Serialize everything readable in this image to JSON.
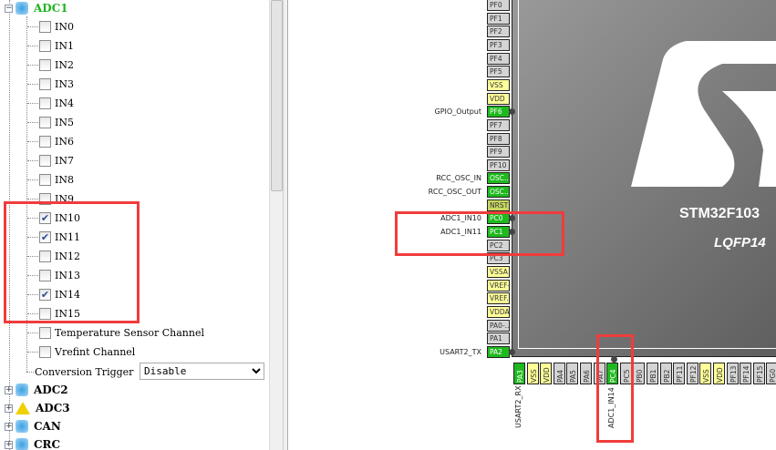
{
  "tree": {
    "adc1": {
      "label": "ADC1",
      "icon": "peripheral-cube-icon",
      "color": "#1eb41e",
      "channels": [
        {
          "label": "IN0",
          "checked": false
        },
        {
          "label": "IN1",
          "checked": false
        },
        {
          "label": "IN2",
          "checked": false
        },
        {
          "label": "IN3",
          "checked": false
        },
        {
          "label": "IN4",
          "checked": false
        },
        {
          "label": "IN5",
          "checked": false
        },
        {
          "label": "IN6",
          "checked": false
        },
        {
          "label": "IN7",
          "checked": false
        },
        {
          "label": "IN8",
          "checked": false
        },
        {
          "label": "IN9",
          "checked": false
        },
        {
          "label": "IN10",
          "checked": true
        },
        {
          "label": "IN11",
          "checked": true
        },
        {
          "label": "IN12",
          "checked": false
        },
        {
          "label": "IN13",
          "checked": false
        },
        {
          "label": "IN14",
          "checked": true
        },
        {
          "label": "IN15",
          "checked": false
        },
        {
          "label": "Temperature Sensor Channel",
          "checked": false
        },
        {
          "label": "Vrefint Channel",
          "checked": false
        }
      ],
      "conversion_trigger": {
        "label": "Conversion Trigger",
        "value": "Disable"
      }
    },
    "groups": [
      {
        "label": "ADC2",
        "icon": "peripheral-cube-icon"
      },
      {
        "label": "ADC3",
        "icon": "warning-icon"
      },
      {
        "label": "CAN",
        "icon": "peripheral-cube-icon"
      },
      {
        "label": "CRC",
        "icon": "peripheral-cube-icon"
      }
    ]
  },
  "chip": {
    "name": "STM32F103",
    "package": "LQFP14",
    "logo": "ST",
    "left_pins": [
      {
        "name": "PF0",
        "type": "io"
      },
      {
        "name": "PF1",
        "type": "io"
      },
      {
        "name": "PF2",
        "type": "io"
      },
      {
        "name": "PF3",
        "type": "io"
      },
      {
        "name": "PF4",
        "type": "io"
      },
      {
        "name": "PF5",
        "type": "io"
      },
      {
        "name": "VSS",
        "type": "power"
      },
      {
        "name": "VDD",
        "type": "power"
      },
      {
        "name": "PF6",
        "type": "used",
        "label": "GPIO_Output"
      },
      {
        "name": "PF7",
        "type": "io"
      },
      {
        "name": "PF8",
        "type": "io"
      },
      {
        "name": "PF9",
        "type": "io"
      },
      {
        "name": "PF10",
        "type": "io"
      },
      {
        "name": "OSC...",
        "type": "used",
        "label": "RCC_OSC_IN"
      },
      {
        "name": "OSC...",
        "type": "used",
        "label": "RCC_OSC_OUT"
      },
      {
        "name": "NRST",
        "type": "reset"
      },
      {
        "name": "PC0",
        "type": "used",
        "label": "ADC1_IN10"
      },
      {
        "name": "PC1",
        "type": "used",
        "label": "ADC1_IN11"
      },
      {
        "name": "PC2",
        "type": "io"
      },
      {
        "name": "PC3",
        "type": "io"
      },
      {
        "name": "VSSA",
        "type": "power"
      },
      {
        "name": "VREF-",
        "type": "power"
      },
      {
        "name": "VREF...",
        "type": "power"
      },
      {
        "name": "VDDA",
        "type": "power"
      },
      {
        "name": "PA0-...",
        "type": "io"
      },
      {
        "name": "PA1",
        "type": "io"
      },
      {
        "name": "PA2",
        "type": "used",
        "label": "USART2_TX"
      }
    ],
    "bottom_pins": [
      {
        "name": "PA3",
        "type": "used",
        "label": "USART2_RX"
      },
      {
        "name": "VSS",
        "type": "power"
      },
      {
        "name": "VDD",
        "type": "power"
      },
      {
        "name": "PA4",
        "type": "io"
      },
      {
        "name": "PA5",
        "type": "io"
      },
      {
        "name": "PA6",
        "type": "io"
      },
      {
        "name": "PA7",
        "type": "io"
      },
      {
        "name": "PC4",
        "type": "used",
        "label": "ADC1_IN14"
      },
      {
        "name": "PC5",
        "type": "io"
      },
      {
        "name": "PB0",
        "type": "io"
      },
      {
        "name": "PB1",
        "type": "io"
      },
      {
        "name": "PB2",
        "type": "io"
      },
      {
        "name": "PF11",
        "type": "io"
      },
      {
        "name": "PF12",
        "type": "io"
      },
      {
        "name": "VSS",
        "type": "power"
      },
      {
        "name": "VDD",
        "type": "power"
      },
      {
        "name": "PF13",
        "type": "io"
      },
      {
        "name": "PF14",
        "type": "io"
      },
      {
        "name": "PF15",
        "type": "io"
      },
      {
        "name": "PG0",
        "type": "io"
      }
    ]
  },
  "colors": {
    "used": "#1eb91e",
    "io": "#d4d4d4",
    "power": "#ffff99",
    "reset": "#c8d860",
    "highlight": "#f03c3c"
  }
}
